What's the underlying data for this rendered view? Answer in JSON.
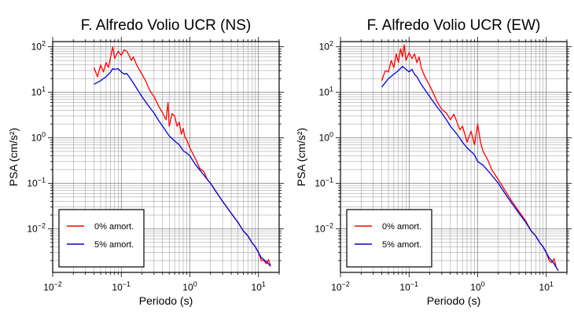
{
  "chart_data": [
    {
      "type": "line",
      "title": "F. Alfredo Volio UCR (NS)",
      "xlabel": "Periodo (s)",
      "ylabel": "PSA (cm/s²)",
      "xscale": "log",
      "yscale": "log",
      "xlim": [
        0.01,
        20
      ],
      "ylim": [
        0.0011,
        130
      ],
      "grid": true,
      "legend_position": "bottom-left",
      "xticks": [
        {
          "base": "10",
          "exp": "−2"
        },
        {
          "base": "10",
          "exp": "−1"
        },
        {
          "base": "10",
          "exp": "0"
        },
        {
          "base": "10",
          "exp": "1"
        }
      ],
      "yticks": [
        {
          "base": "10",
          "exp": "−2"
        },
        {
          "base": "10",
          "exp": "−1"
        },
        {
          "base": "10",
          "exp": "0"
        },
        {
          "base": "10",
          "exp": "1"
        },
        {
          "base": "10",
          "exp": "2"
        }
      ],
      "series": [
        {
          "name": "0% amort.",
          "color": "#ff0000",
          "x": [
            0.04,
            0.045,
            0.05,
            0.055,
            0.06,
            0.065,
            0.07,
            0.075,
            0.08,
            0.09,
            0.1,
            0.11,
            0.12,
            0.13,
            0.14,
            0.15,
            0.17,
            0.2,
            0.23,
            0.26,
            0.3,
            0.35,
            0.4,
            0.45,
            0.48,
            0.5,
            0.55,
            0.6,
            0.65,
            0.7,
            0.75,
            0.8,
            0.85,
            0.9,
            1.0,
            1.1,
            1.2,
            1.4,
            1.6,
            1.8,
            2,
            2.5,
            3,
            4,
            5,
            6,
            7,
            8,
            9,
            10,
            11,
            12,
            13,
            14,
            15
          ],
          "y": [
            35,
            22,
            40,
            28,
            45,
            35,
            60,
            100,
            55,
            80,
            65,
            85,
            80,
            65,
            50,
            60,
            38,
            25,
            17,
            11,
            8,
            5,
            3.5,
            2.5,
            6,
            1.8,
            3.4,
            3,
            1.8,
            2.2,
            1.2,
            1.6,
            1,
            0.9,
            0.6,
            0.45,
            0.35,
            0.21,
            0.18,
            0.12,
            0.1,
            0.06,
            0.04,
            0.022,
            0.014,
            0.009,
            0.007,
            0.005,
            0.004,
            0.003,
            0.002,
            0.002,
            0.0017,
            0.0021,
            0.0015
          ]
        },
        {
          "name": "5% amort.",
          "color": "#0000dd",
          "x": [
            0.04,
            0.05,
            0.06,
            0.07,
            0.075,
            0.08,
            0.09,
            0.1,
            0.11,
            0.12,
            0.13,
            0.15,
            0.2,
            0.25,
            0.3,
            0.35,
            0.4,
            0.5,
            0.6,
            0.7,
            0.8,
            0.9,
            1.0,
            1.2,
            1.5,
            2,
            2.5,
            3,
            4,
            5,
            6,
            7,
            8,
            9,
            10,
            11,
            12,
            13,
            14,
            15
          ],
          "y": [
            15,
            18,
            22,
            28,
            33,
            32,
            33,
            28,
            25,
            26,
            22,
            16,
            8,
            5,
            3.5,
            2.4,
            1.8,
            1.1,
            0.85,
            0.7,
            0.52,
            0.46,
            0.4,
            0.26,
            0.17,
            0.1,
            0.06,
            0.04,
            0.022,
            0.014,
            0.009,
            0.007,
            0.005,
            0.004,
            0.003,
            0.0023,
            0.0021,
            0.0019,
            0.0017,
            0.0015
          ]
        }
      ]
    },
    {
      "type": "line",
      "title": "F. Alfredo Volio UCR (EW)",
      "xlabel": "Periodo (s)",
      "ylabel": "PSA (cm/s²)",
      "xscale": "log",
      "yscale": "log",
      "xlim": [
        0.01,
        20
      ],
      "ylim": [
        0.0011,
        130
      ],
      "grid": true,
      "legend_position": "bottom-left",
      "xticks": [
        {
          "base": "10",
          "exp": "−2"
        },
        {
          "base": "10",
          "exp": "−1"
        },
        {
          "base": "10",
          "exp": "0"
        },
        {
          "base": "10",
          "exp": "1"
        }
      ],
      "yticks": [
        {
          "base": "10",
          "exp": "−2"
        },
        {
          "base": "10",
          "exp": "−1"
        },
        {
          "base": "10",
          "exp": "0"
        },
        {
          "base": "10",
          "exp": "1"
        },
        {
          "base": "10",
          "exp": "2"
        }
      ],
      "series": [
        {
          "name": "0% amort.",
          "color": "#ff0000",
          "x": [
            0.04,
            0.045,
            0.05,
            0.055,
            0.06,
            0.065,
            0.07,
            0.075,
            0.08,
            0.085,
            0.09,
            0.1,
            0.11,
            0.12,
            0.13,
            0.14,
            0.15,
            0.17,
            0.2,
            0.23,
            0.26,
            0.3,
            0.35,
            0.4,
            0.45,
            0.5,
            0.55,
            0.6,
            0.65,
            0.7,
            0.8,
            0.9,
            1.0,
            1.1,
            1.2,
            1.4,
            1.6,
            2,
            2.5,
            3,
            4,
            5,
            6,
            7,
            8,
            9,
            10,
            11,
            12,
            13,
            14,
            15
          ],
          "y": [
            18,
            30,
            28,
            50,
            35,
            70,
            45,
            90,
            60,
            110,
            50,
            75,
            55,
            70,
            45,
            60,
            35,
            22,
            14,
            9,
            6,
            4.2,
            3.5,
            2.5,
            3.3,
            2.2,
            1.5,
            1.8,
            1.2,
            0.8,
            1.4,
            0.7,
            2,
            0.8,
            0.5,
            0.33,
            0.2,
            0.12,
            0.07,
            0.045,
            0.024,
            0.015,
            0.009,
            0.007,
            0.005,
            0.004,
            0.003,
            0.002,
            0.0018,
            0.0022,
            0.0014,
            0.0012
          ]
        },
        {
          "name": "5% amort.",
          "color": "#0000dd",
          "x": [
            0.04,
            0.05,
            0.06,
            0.07,
            0.08,
            0.09,
            0.1,
            0.11,
            0.12,
            0.13,
            0.15,
            0.2,
            0.25,
            0.3,
            0.35,
            0.4,
            0.5,
            0.6,
            0.7,
            0.8,
            0.9,
            1.0,
            1.2,
            1.5,
            2,
            2.5,
            3,
            4,
            5,
            6,
            7,
            8,
            9,
            10,
            11,
            12,
            13,
            14,
            15
          ],
          "y": [
            13,
            20,
            25,
            30,
            37,
            32,
            28,
            32,
            25,
            22,
            15,
            8,
            5,
            3.5,
            2.5,
            1.8,
            1.2,
            0.8,
            0.6,
            0.5,
            0.42,
            0.3,
            0.25,
            0.17,
            0.1,
            0.06,
            0.04,
            0.022,
            0.014,
            0.009,
            0.007,
            0.005,
            0.004,
            0.003,
            0.0023,
            0.002,
            0.0017,
            0.0014,
            0.0012
          ]
        }
      ]
    }
  ]
}
